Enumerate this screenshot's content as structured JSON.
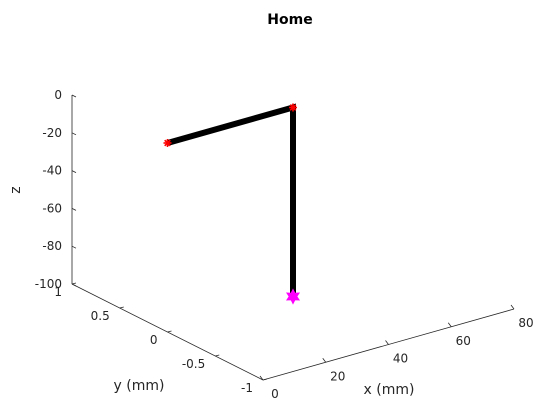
{
  "chart_data": {
    "type": "line",
    "title": "Home",
    "xlabel": "x (mm)",
    "ylabel": "y (mm)",
    "zlabel": "z",
    "xlim": [
      0,
      80
    ],
    "ylim": [
      -1,
      1
    ],
    "zlim": [
      -100,
      0
    ],
    "xticks": [
      "0",
      "20",
      "40",
      "60",
      "80"
    ],
    "yticks": [
      "1",
      "0.5",
      "0",
      "-0.5",
      "-1"
    ],
    "zticks": [
      "0",
      "-20",
      "-40",
      "-60",
      "-80",
      "-100"
    ],
    "grid": false,
    "series": [
      {
        "x": [
          0,
          40,
          40
        ],
        "y": [
          0,
          0,
          0
        ],
        "z": [
          0,
          0,
          -100
        ],
        "line_color": "#000000",
        "marker_color": "#ff0000",
        "marker": "asterisk"
      }
    ],
    "end_marker": {
      "x": 40,
      "y": 0,
      "z": -100,
      "color": "#ff00ff",
      "marker": "hexagram"
    }
  }
}
